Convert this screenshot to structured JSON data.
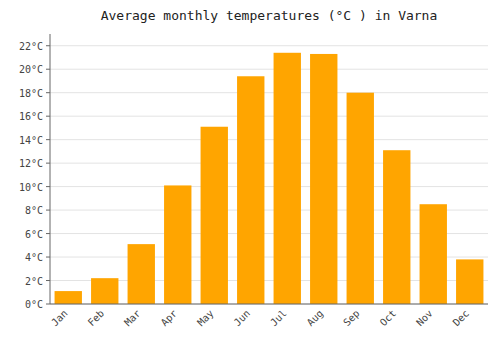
{
  "chart_data": {
    "type": "bar",
    "title": "Average monthly temperatures (°C ) in Varna",
    "categories": [
      "Jan",
      "Feb",
      "Mar",
      "Apr",
      "May",
      "Jun",
      "Jul",
      "Aug",
      "Sep",
      "Oct",
      "Nov",
      "Dec"
    ],
    "values": [
      1.1,
      2.2,
      5.1,
      10.1,
      15.1,
      19.4,
      21.4,
      21.3,
      18.0,
      13.1,
      8.5,
      3.8
    ],
    "color": "#FFA500",
    "ylim": [
      0,
      23
    ],
    "yticks": [
      {
        "value": 0,
        "label": "0°C"
      },
      {
        "value": 2,
        "label": "2°C"
      },
      {
        "value": 4,
        "label": "4°C"
      },
      {
        "value": 6,
        "label": "6°C"
      },
      {
        "value": 8,
        "label": "8°C"
      },
      {
        "value": 10,
        "label": "10°C"
      },
      {
        "value": 12,
        "label": "12°C"
      },
      {
        "value": 14,
        "label": "14°C"
      },
      {
        "value": 16,
        "label": "16°C"
      },
      {
        "value": 18,
        "label": "18°C"
      },
      {
        "value": 20,
        "label": "20°C"
      },
      {
        "value": 22,
        "label": "22°C"
      }
    ],
    "grid": true
  }
}
